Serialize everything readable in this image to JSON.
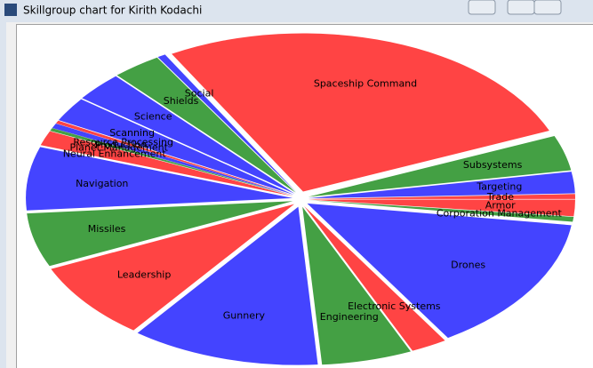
{
  "window": {
    "title": "Skillgroup chart for Kirith Kodachi"
  },
  "chart_data": {
    "type": "pie",
    "categories": [
      "Armor",
      "Corporation Management",
      "Drones",
      "Electronic Systems",
      "Engineering",
      "Gunnery",
      "Leadership",
      "Missiles",
      "Navigation",
      "Neural Enhancement",
      "Planet Management",
      "Production",
      "Resource Processing",
      "Scanning",
      "Science",
      "Shields",
      "Social",
      "Spaceship Command",
      "Subsystems",
      "Targeting",
      "Trade"
    ],
    "values": [
      1.7,
      0.5,
      14,
      2.2,
      5.5,
      11.5,
      8,
      5.5,
      6.5,
      1.5,
      0.3,
      0.5,
      0.3,
      2.5,
      3,
      3,
      0.5,
      27,
      3.6,
      2.2,
      0.5
    ],
    "colors": [
      "#ff4444",
      "#44a044",
      "#4444ff",
      "#ff4444",
      "#44a044",
      "#4444ff",
      "#ff4444",
      "#44a044",
      "#4444ff",
      "#ff4444",
      "#44a044",
      "#4444ff",
      "#ff4444",
      "#4444ff",
      "#4444ff",
      "#44a044",
      "#4444ff",
      "#ff4444",
      "#44a044",
      "#4444ff",
      "#ff4444"
    ]
  }
}
